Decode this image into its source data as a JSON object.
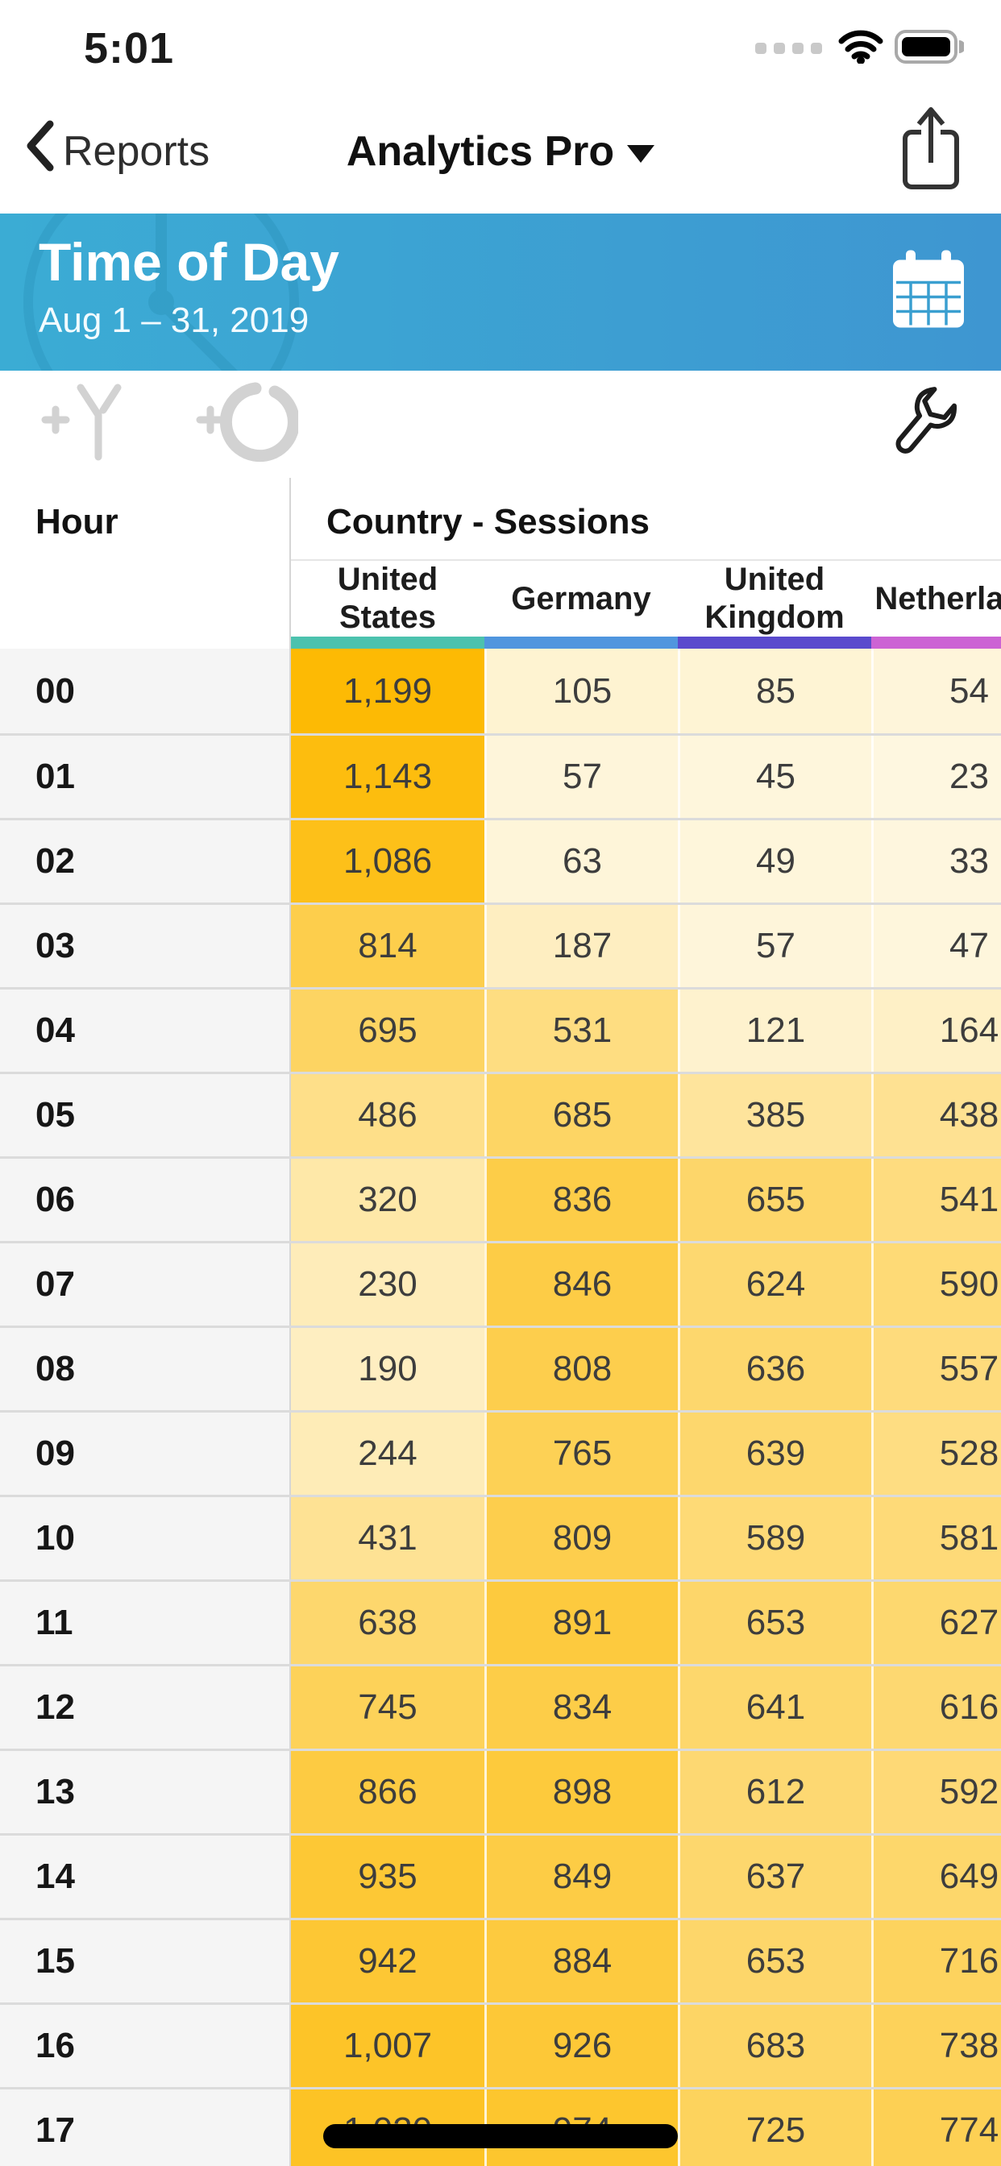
{
  "status_bar": {
    "time": "5:01"
  },
  "nav_bar": {
    "back_label": "Reports",
    "title": "Analytics Pro"
  },
  "report_header": {
    "title": "Time of Day",
    "date_range": "Aug 1 – 31, 2019",
    "gradient_left": "#3BACD4",
    "gradient_right": "#3E96D1"
  },
  "icons": {
    "back": "chevron-left",
    "title_caret": "caret-down",
    "share": "export-arrow-box",
    "calendar": "calendar-grid",
    "add_filter": "plus-funnel",
    "add_segment": "plus-ring",
    "tools": "wrench",
    "cellular": "four-dots",
    "wifi": "wifi-arcs",
    "battery": "battery-full"
  },
  "table": {
    "hour_header": "Hour",
    "group_header": "Country - Sessions",
    "columns": [
      {
        "label": "United States",
        "color": "#4CC2AE"
      },
      {
        "label": "Germany",
        "color": "#5096DE"
      },
      {
        "label": "United Kingdom",
        "color": "#5A4ACD"
      },
      {
        "label": "Netherlands",
        "color": "#CC63D4"
      }
    ],
    "heat": {
      "low": "#FEF7E0",
      "high": "#FDBA04",
      "min": 23,
      "max": 1199
    },
    "rows": [
      {
        "hour": "00",
        "values": [
          1199,
          105,
          85,
          54
        ],
        "display": [
          "1,199",
          "105",
          "85",
          "54"
        ]
      },
      {
        "hour": "01",
        "values": [
          1143,
          57,
          45,
          23
        ],
        "display": [
          "1,143",
          "57",
          "45",
          "23"
        ]
      },
      {
        "hour": "02",
        "values": [
          1086,
          63,
          49,
          33
        ],
        "display": [
          "1,086",
          "63",
          "49",
          "33"
        ]
      },
      {
        "hour": "03",
        "values": [
          814,
          187,
          57,
          47
        ],
        "display": [
          "814",
          "187",
          "57",
          "47"
        ]
      },
      {
        "hour": "04",
        "values": [
          695,
          531,
          121,
          164
        ],
        "display": [
          "695",
          "531",
          "121",
          "164"
        ]
      },
      {
        "hour": "05",
        "values": [
          486,
          685,
          385,
          438
        ],
        "display": [
          "486",
          "685",
          "385",
          "438"
        ]
      },
      {
        "hour": "06",
        "values": [
          320,
          836,
          655,
          541
        ],
        "display": [
          "320",
          "836",
          "655",
          "541"
        ]
      },
      {
        "hour": "07",
        "values": [
          230,
          846,
          624,
          590
        ],
        "display": [
          "230",
          "846",
          "624",
          "590"
        ]
      },
      {
        "hour": "08",
        "values": [
          190,
          808,
          636,
          557
        ],
        "display": [
          "190",
          "808",
          "636",
          "557"
        ]
      },
      {
        "hour": "09",
        "values": [
          244,
          765,
          639,
          528
        ],
        "display": [
          "244",
          "765",
          "639",
          "528"
        ]
      },
      {
        "hour": "10",
        "values": [
          431,
          809,
          589,
          581
        ],
        "display": [
          "431",
          "809",
          "589",
          "581"
        ]
      },
      {
        "hour": "11",
        "values": [
          638,
          891,
          653,
          627
        ],
        "display": [
          "638",
          "891",
          "653",
          "627"
        ]
      },
      {
        "hour": "12",
        "values": [
          745,
          834,
          641,
          616
        ],
        "display": [
          "745",
          "834",
          "641",
          "616"
        ]
      },
      {
        "hour": "13",
        "values": [
          866,
          898,
          612,
          592
        ],
        "display": [
          "866",
          "898",
          "612",
          "592"
        ]
      },
      {
        "hour": "14",
        "values": [
          935,
          849,
          637,
          649
        ],
        "display": [
          "935",
          "849",
          "637",
          "649"
        ]
      },
      {
        "hour": "15",
        "values": [
          942,
          884,
          653,
          716
        ],
        "display": [
          "942",
          "884",
          "653",
          "716"
        ]
      },
      {
        "hour": "16",
        "values": [
          1007,
          926,
          683,
          738
        ],
        "display": [
          "1,007",
          "926",
          "683",
          "738"
        ]
      },
      {
        "hour": "17",
        "values": [
          1020,
          974,
          725,
          774
        ],
        "display": [
          "1,020",
          "974",
          "725",
          "774"
        ]
      }
    ]
  }
}
